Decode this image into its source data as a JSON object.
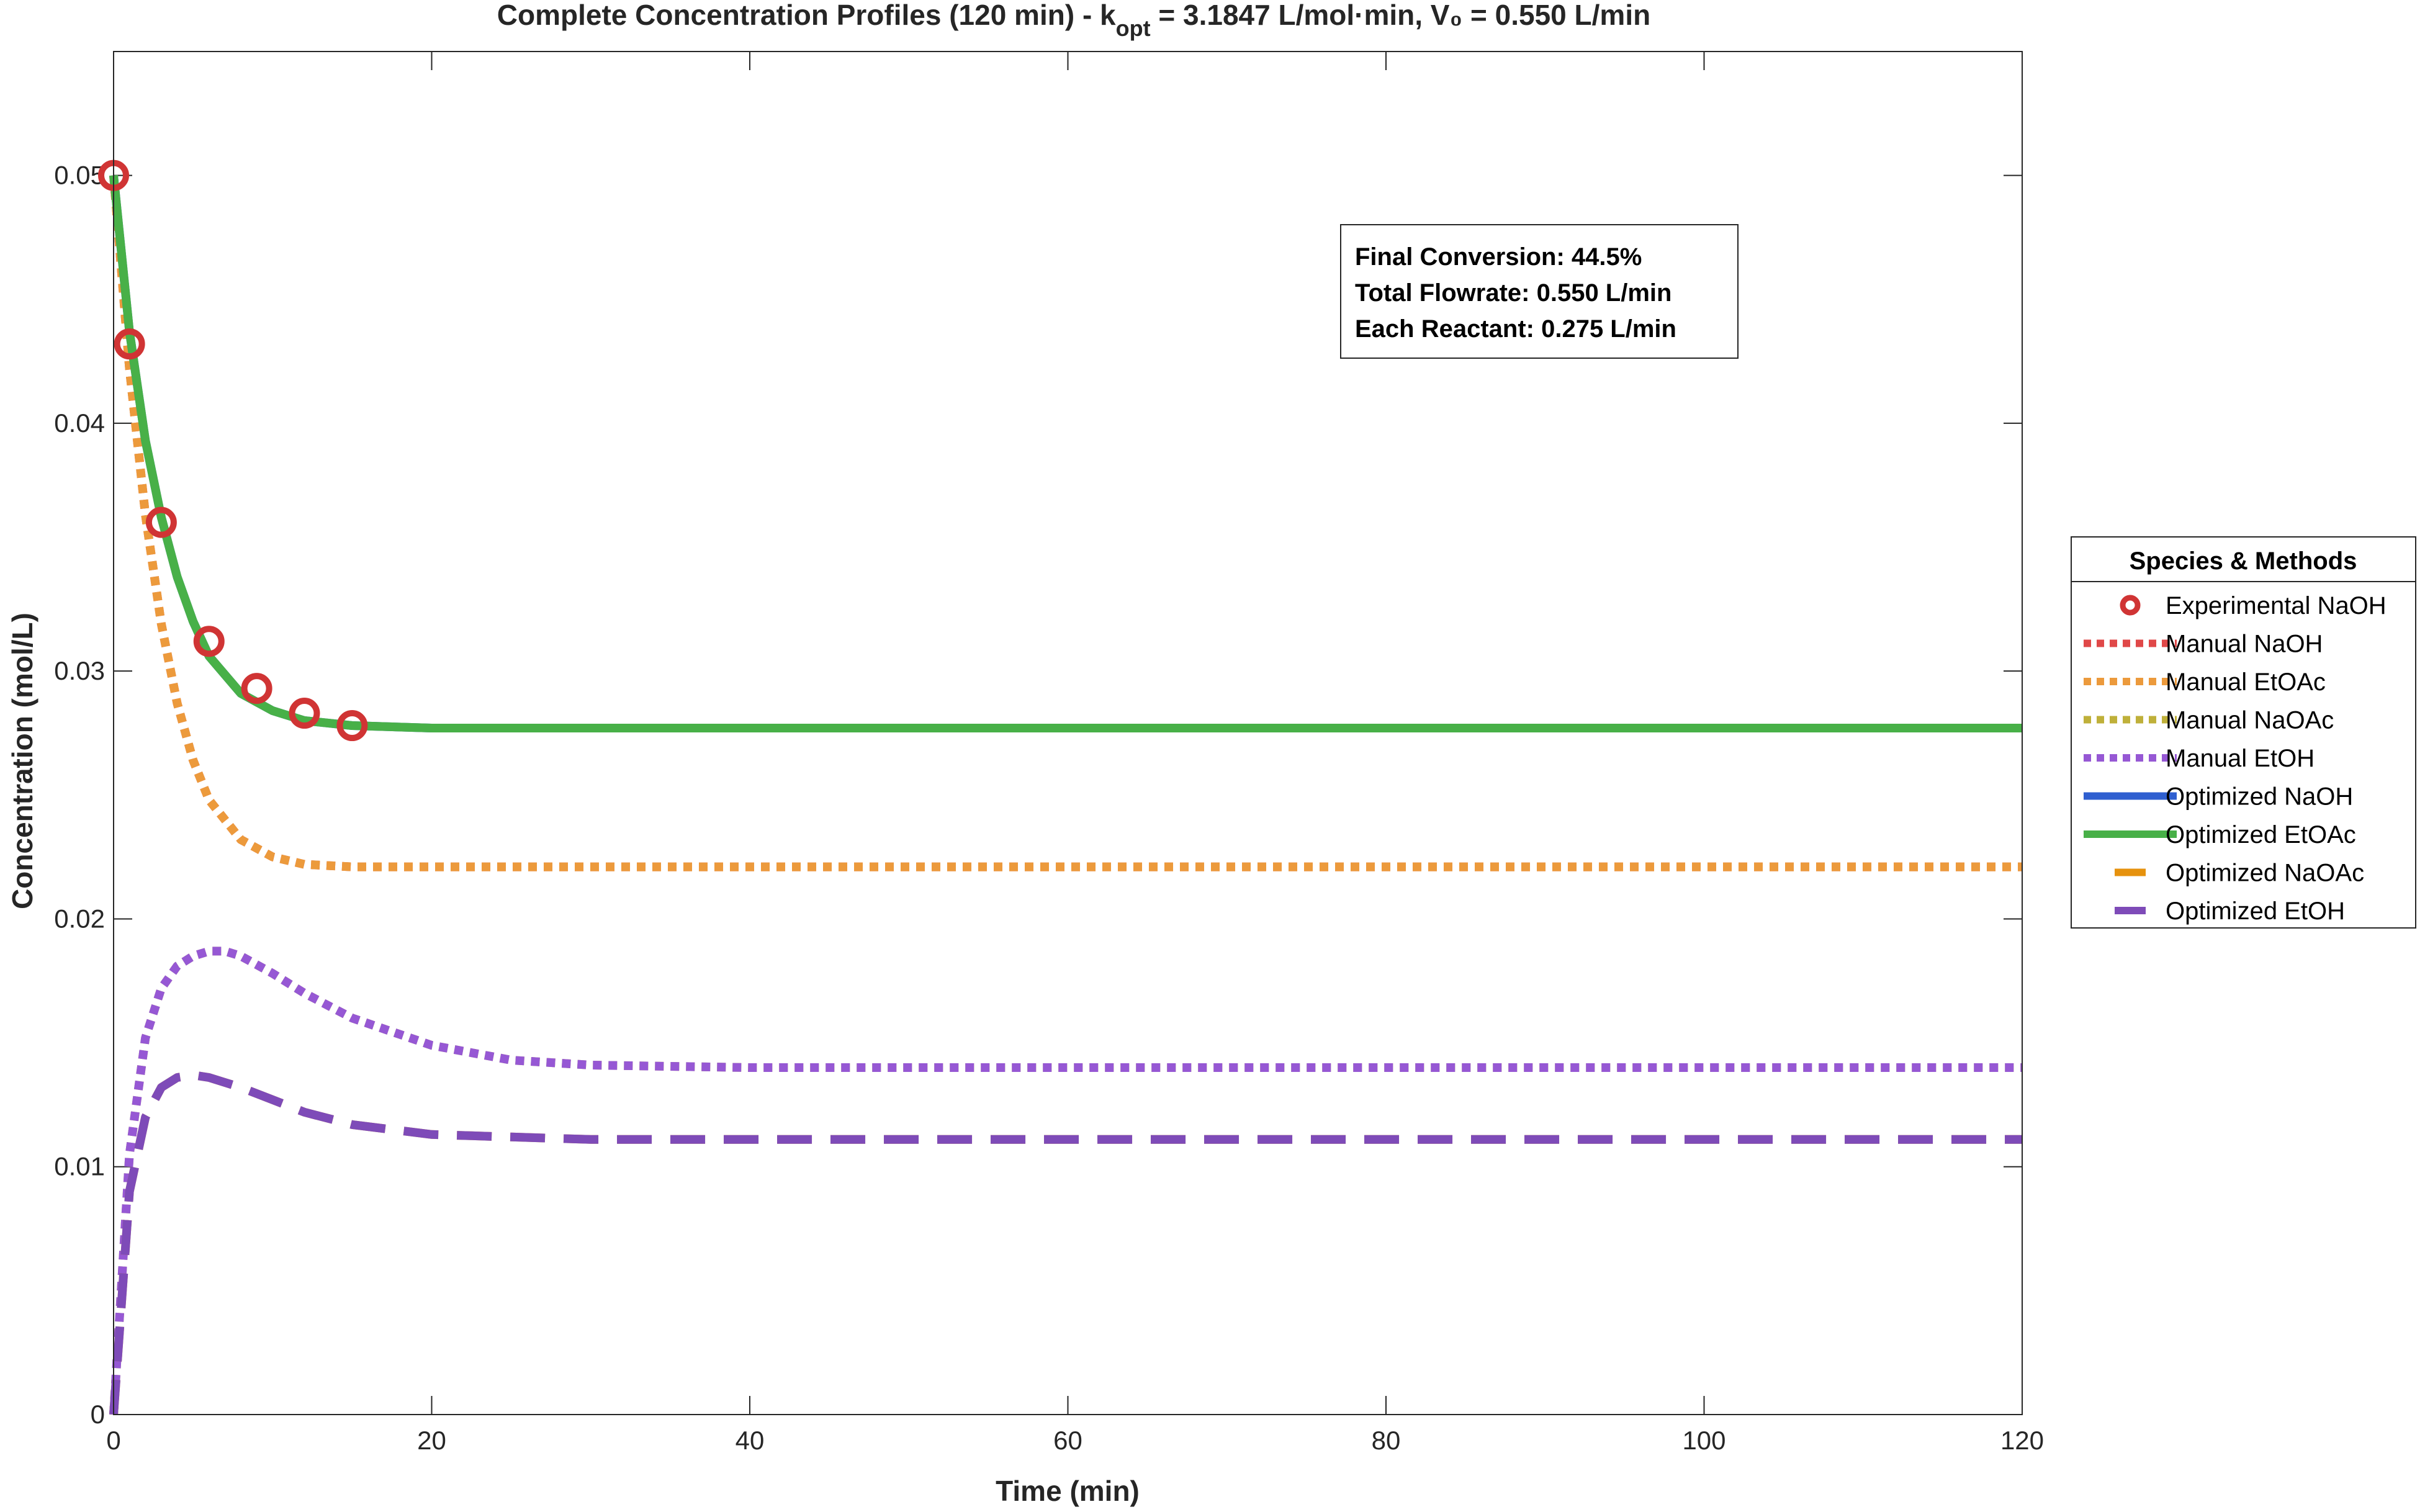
{
  "chart_data": {
    "type": "line",
    "title_prefix": "Complete Concentration Profiles (120 min) - k",
    "title_subscript": "opt",
    "title_suffix": " = 3.1847 L/mol·min, V₀ = 0.550 L/min",
    "xlabel": "Time (min)",
    "ylabel": "Concentration (mol/L)",
    "xlim": [
      0,
      120
    ],
    "ylim": [
      0,
      0.055
    ],
    "xticks": [
      0,
      20,
      40,
      60,
      80,
      100,
      120
    ],
    "xtick_labels": [
      "0",
      "20",
      "40",
      "60",
      "80",
      "100",
      "120"
    ],
    "yticks": [
      0,
      0.01,
      0.02,
      0.03,
      0.04,
      0.05
    ],
    "ytick_labels": [
      "0",
      "0.01",
      "0.02",
      "0.03",
      "0.04",
      "0.05"
    ],
    "grid": false,
    "legend": {
      "title": "Species & Methods",
      "placement": "outside-right"
    },
    "annotation": [
      "Final Conversion: 44.5%",
      "Total Flowrate: 0.550 L/min",
      "Each Reactant: 0.275 L/min"
    ],
    "series": [
      {
        "name": "Experimental NaOH",
        "style": "markers",
        "color": "#d03434",
        "x": [
          0,
          1,
          3,
          6,
          9,
          12,
          15
        ],
        "y": [
          0.05,
          0.0432,
          0.036,
          0.0312,
          0.0293,
          0.0283,
          0.0278
        ]
      },
      {
        "name": "Manual NaOH",
        "style": "dotted",
        "color": "#e04848",
        "x": [
          0,
          1,
          2,
          3,
          4,
          5,
          6,
          8,
          10,
          12,
          15,
          20,
          25,
          30,
          40,
          60,
          80,
          100,
          120
        ],
        "y": [
          0.05,
          0.0422,
          0.0363,
          0.0319,
          0.0287,
          0.0264,
          0.0248,
          0.0232,
          0.0225,
          0.0222,
          0.0221,
          0.0221,
          0.0221,
          0.0221,
          0.0221,
          0.0221,
          0.0221,
          0.0221,
          0.0221
        ]
      },
      {
        "name": "Manual EtOAc",
        "style": "dotted",
        "color": "#ec9a3c",
        "x": [
          0,
          1,
          2,
          3,
          4,
          5,
          6,
          8,
          10,
          12,
          15,
          20,
          25,
          30,
          40,
          60,
          80,
          100,
          120
        ],
        "y": [
          0.05,
          0.0422,
          0.0363,
          0.0319,
          0.0287,
          0.0264,
          0.0248,
          0.0232,
          0.0225,
          0.0222,
          0.0221,
          0.0221,
          0.0221,
          0.0221,
          0.0221,
          0.0221,
          0.0221,
          0.0221,
          0.0221
        ]
      },
      {
        "name": "Manual NaOAc",
        "style": "dotted",
        "color": "#bfb03a",
        "x": [
          0,
          1,
          2,
          3,
          4,
          5,
          6,
          7,
          8,
          10,
          12,
          15,
          20,
          25,
          30,
          40,
          60,
          80,
          100,
          120
        ],
        "y": [
          0,
          0.0105,
          0.0152,
          0.0172,
          0.0181,
          0.0185,
          0.0187,
          0.0187,
          0.0185,
          0.0178,
          0.017,
          0.016,
          0.0149,
          0.0143,
          0.0141,
          0.014,
          0.014,
          0.014,
          0.014,
          0.014
        ]
      },
      {
        "name": "Manual EtOH",
        "style": "dotted",
        "color": "#9658d4",
        "x": [
          0,
          1,
          2,
          3,
          4,
          5,
          6,
          7,
          8,
          10,
          12,
          15,
          20,
          25,
          30,
          40,
          60,
          80,
          100,
          120
        ],
        "y": [
          0,
          0.0105,
          0.0152,
          0.0172,
          0.0181,
          0.0185,
          0.0187,
          0.0187,
          0.0185,
          0.0178,
          0.017,
          0.016,
          0.0149,
          0.0143,
          0.0141,
          0.014,
          0.014,
          0.014,
          0.014,
          0.014
        ]
      },
      {
        "name": "Optimized NaOH",
        "style": "solid",
        "color": "#2f5fd0",
        "x": [
          0,
          1,
          2,
          3,
          4,
          5,
          6,
          8,
          10,
          12,
          15,
          20,
          25,
          30,
          40,
          60,
          80,
          100,
          120
        ],
        "y": [
          0.05,
          0.0437,
          0.0393,
          0.0362,
          0.0338,
          0.032,
          0.0306,
          0.0291,
          0.0284,
          0.028,
          0.0278,
          0.0277,
          0.0277,
          0.0277,
          0.0277,
          0.0277,
          0.0277,
          0.0277,
          0.0277
        ]
      },
      {
        "name": "Optimized EtOAc",
        "style": "solid",
        "color": "#48b048",
        "x": [
          0,
          1,
          2,
          3,
          4,
          5,
          6,
          8,
          10,
          12,
          15,
          20,
          25,
          30,
          40,
          60,
          80,
          100,
          120
        ],
        "y": [
          0.05,
          0.0437,
          0.0393,
          0.0362,
          0.0338,
          0.032,
          0.0306,
          0.0291,
          0.0284,
          0.028,
          0.0278,
          0.0277,
          0.0277,
          0.0277,
          0.0277,
          0.0277,
          0.0277,
          0.0277,
          0.0277
        ]
      },
      {
        "name": "Optimized NaOAc",
        "style": "dashed",
        "color": "#e6920e",
        "x": [
          0,
          1,
          2,
          3,
          4,
          5,
          6,
          7,
          8,
          10,
          12,
          15,
          20,
          25,
          30,
          40,
          60,
          80,
          100,
          120
        ],
        "y": [
          0,
          0.009,
          0.012,
          0.0132,
          0.0136,
          0.0137,
          0.0136,
          0.0134,
          0.0132,
          0.0127,
          0.0122,
          0.0117,
          0.0113,
          0.0112,
          0.0111,
          0.0111,
          0.0111,
          0.0111,
          0.0111,
          0.0111
        ]
      },
      {
        "name": "Optimized EtOH",
        "style": "dashed",
        "color": "#7e4bb8",
        "x": [
          0,
          1,
          2,
          3,
          4,
          5,
          6,
          7,
          8,
          10,
          12,
          15,
          20,
          25,
          30,
          40,
          60,
          80,
          100,
          120
        ],
        "y": [
          0,
          0.009,
          0.012,
          0.0132,
          0.0136,
          0.0137,
          0.0136,
          0.0134,
          0.0132,
          0.0127,
          0.0122,
          0.0117,
          0.0113,
          0.0112,
          0.0111,
          0.0111,
          0.0111,
          0.0111,
          0.0111,
          0.0111
        ]
      }
    ]
  }
}
